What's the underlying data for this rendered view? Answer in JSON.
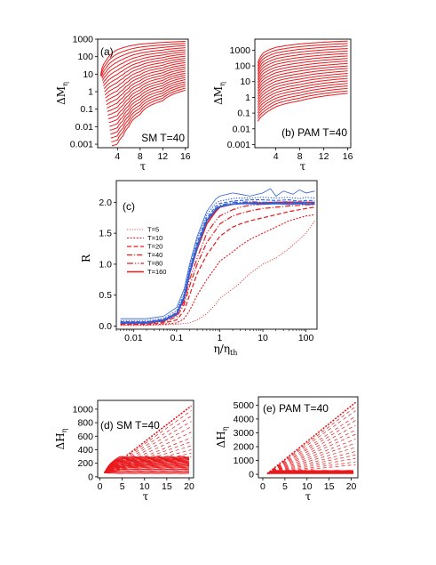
{
  "chart_data": [
    {
      "id": "a",
      "type": "line",
      "panel_label": "(a)",
      "annotation": "SM  T=40",
      "xlabel": "τ",
      "ylabel": "ΔM",
      "ylabel_sub": "η",
      "xlim": [
        0.5,
        16.5
      ],
      "ylim_log10": [
        -3.2,
        3.0
      ],
      "log_y": true,
      "x_ticks": [
        4,
        8,
        12,
        16
      ],
      "y_ticks": [
        0.001,
        0.01,
        0.1,
        1,
        10,
        100,
        1000
      ],
      "y_tick_labels": [
        "0.001",
        "0.01",
        "0.1",
        "1",
        "10",
        "100",
        "1000"
      ],
      "color": "#e8191c",
      "curve_count": 24,
      "curve_model": "saturating growth in log10(ΔM) versus τ",
      "curve_x_range": [
        1,
        16
      ],
      "top_curve": {
        "x": [
          1,
          2,
          3,
          4,
          6,
          8,
          12,
          16
        ],
        "y": [
          8,
          60,
          150,
          250,
          400,
          520,
          650,
          750
        ]
      },
      "bottom_curve": {
        "x": [
          3,
          4,
          5,
          6,
          8,
          12,
          16
        ],
        "y": [
          0.0008,
          0.001,
          0.003,
          0.01,
          0.05,
          0.3,
          1.2
        ]
      }
    },
    {
      "id": "b",
      "type": "line",
      "panel_label": "(b) PAM  T=40",
      "xlabel": "τ",
      "ylabel": "ΔM",
      "ylabel_sub": "η",
      "xlim": [
        0.5,
        16.5
      ],
      "ylim_log10": [
        -3.2,
        3.7
      ],
      "log_y": true,
      "x_ticks": [
        4,
        8,
        12,
        16
      ],
      "y_ticks": [
        0.001,
        0.01,
        0.1,
        1,
        10,
        100,
        1000
      ],
      "y_tick_labels": [
        "0.001",
        "0.01",
        "0.1",
        "1",
        "10",
        "100",
        "1000"
      ],
      "color": "#e8191c",
      "curve_count": 22,
      "curve_model": "saturating growth in log10(ΔM) versus τ",
      "curve_x_range": [
        1,
        16
      ],
      "top_curve": {
        "x": [
          1,
          2,
          4,
          8,
          12,
          16
        ],
        "y": [
          150,
          700,
          1500,
          2500,
          3200,
          3800
        ]
      },
      "bottom_curve": {
        "x": [
          1,
          2,
          3,
          4,
          8,
          12,
          16
        ],
        "y": [
          0.03,
          0.08,
          0.15,
          0.25,
          0.6,
          1.2,
          1.8
        ]
      }
    },
    {
      "id": "c",
      "type": "line",
      "panel_label": "(c)",
      "xlabel": "η/η",
      "xlabel_sub": "th",
      "ylabel": "R",
      "log_x": true,
      "xlim": [
        0.004,
        180
      ],
      "ylim": [
        -0.05,
        2.35
      ],
      "x_ticks": [
        0.01,
        0.1,
        1,
        10,
        100
      ],
      "x_tick_labels": [
        "0.01",
        "0.1",
        "1",
        "10",
        "100"
      ],
      "y_ticks": [
        0.0,
        0.5,
        1.0,
        1.5,
        2.0
      ],
      "y_tick_labels": [
        "0.0",
        "0.5",
        "1.0",
        "1.5",
        "2.0"
      ],
      "legend": {
        "position": "center-left",
        "entries": [
          "T=5",
          "T=10",
          "T=20",
          "T=40",
          "T=80",
          "T=160"
        ]
      },
      "series": [
        {
          "name": "T=5",
          "color": "#e8191c",
          "dash": "1.2,1.6",
          "width": 0.8,
          "x": [
            0.005,
            0.02,
            0.05,
            0.1,
            0.2,
            0.3,
            0.5,
            0.8,
            1,
            2,
            3,
            5,
            10,
            20,
            40,
            70,
            100,
            160
          ],
          "y": [
            0.01,
            0.01,
            0.02,
            0.03,
            0.05,
            0.1,
            0.2,
            0.35,
            0.45,
            0.6,
            0.7,
            0.85,
            1.0,
            1.1,
            1.25,
            1.4,
            1.5,
            1.7
          ]
        },
        {
          "name": "T=10",
          "color": "#e8191c",
          "dash": "2,1.6",
          "width": 1.1,
          "x": [
            0.005,
            0.02,
            0.05,
            0.1,
            0.15,
            0.2,
            0.3,
            0.5,
            0.8,
            1,
            2,
            3,
            5,
            10,
            20,
            40,
            70,
            100,
            160
          ],
          "y": [
            0.02,
            0.02,
            0.03,
            0.05,
            0.12,
            0.25,
            0.5,
            0.75,
            0.95,
            1.05,
            1.2,
            1.3,
            1.4,
            1.5,
            1.6,
            1.7,
            1.75,
            1.78,
            1.8
          ]
        },
        {
          "name": "T=20",
          "color": "#e8191c",
          "dash": "5,2.5",
          "width": 1.2,
          "x": [
            0.005,
            0.02,
            0.05,
            0.1,
            0.15,
            0.2,
            0.3,
            0.5,
            0.8,
            1,
            2,
            3,
            5,
            10,
            20,
            40,
            70,
            100,
            160
          ],
          "y": [
            0.03,
            0.03,
            0.05,
            0.1,
            0.25,
            0.5,
            0.85,
            1.15,
            1.35,
            1.45,
            1.6,
            1.65,
            1.7,
            1.75,
            1.8,
            1.85,
            1.88,
            1.9,
            1.92
          ]
        },
        {
          "name": "T=40",
          "color": "#e8191c",
          "dash": "6,2,1.2,2",
          "width": 1.2,
          "x": [
            0.005,
            0.02,
            0.05,
            0.1,
            0.15,
            0.2,
            0.3,
            0.5,
            0.8,
            1,
            2,
            3,
            5,
            10,
            20,
            40,
            70,
            100,
            160
          ],
          "y": [
            0.04,
            0.04,
            0.07,
            0.15,
            0.35,
            0.65,
            1.0,
            1.35,
            1.55,
            1.65,
            1.78,
            1.82,
            1.86,
            1.9,
            1.92,
            1.94,
            1.95,
            1.96,
            1.96
          ]
        },
        {
          "name": "T=80",
          "color": "#e8191c",
          "dash": "7,2,1.2,2,1.2,2",
          "width": 1.2,
          "x": [
            0.005,
            0.02,
            0.05,
            0.1,
            0.15,
            0.2,
            0.3,
            0.5,
            0.8,
            1,
            2,
            3,
            5,
            10,
            20,
            40,
            70,
            100,
            160
          ],
          "y": [
            0.05,
            0.05,
            0.08,
            0.18,
            0.4,
            0.75,
            1.1,
            1.5,
            1.7,
            1.78,
            1.88,
            1.92,
            1.95,
            1.97,
            1.98,
            1.98,
            1.99,
            1.99,
            1.99
          ]
        },
        {
          "name": "T=160",
          "color": "#e8191c",
          "dash": "",
          "width": 1.6,
          "x": [
            0.005,
            0.02,
            0.05,
            0.1,
            0.15,
            0.2,
            0.3,
            0.5,
            0.8,
            1,
            2,
            3,
            5,
            10,
            20,
            40,
            70,
            100,
            160
          ],
          "y": [
            0.06,
            0.06,
            0.1,
            0.2,
            0.45,
            0.85,
            1.25,
            1.65,
            1.85,
            1.92,
            1.97,
            1.98,
            1.99,
            1.99,
            2.0,
            2.0,
            2.0,
            2.0,
            2.0
          ]
        },
        {
          "color": "#2f5fd6",
          "dash": "",
          "width": 0.8,
          "x": [
            0.005,
            0.02,
            0.05,
            0.1,
            0.15,
            0.2,
            0.3,
            0.5,
            0.8,
            1,
            2,
            3,
            5,
            10,
            15,
            20,
            30,
            50,
            70,
            100,
            160
          ],
          "y": [
            0.12,
            0.12,
            0.16,
            0.3,
            0.6,
            1.0,
            1.45,
            1.85,
            2.05,
            2.1,
            2.15,
            2.13,
            2.1,
            2.15,
            2.22,
            2.1,
            2.18,
            2.13,
            2.2,
            2.15,
            2.18
          ]
        },
        {
          "color": "#2f5fd6",
          "dash": "1.5,1.5",
          "width": 1.0,
          "x": [
            0.005,
            0.02,
            0.05,
            0.1,
            0.15,
            0.2,
            0.3,
            0.5,
            0.8,
            1,
            2,
            3,
            5,
            10,
            20,
            40,
            70,
            100,
            160
          ],
          "y": [
            0.09,
            0.09,
            0.13,
            0.25,
            0.55,
            0.95,
            1.4,
            1.8,
            1.98,
            2.02,
            2.06,
            2.07,
            2.07,
            2.08,
            2.07,
            2.08,
            2.06,
            2.08,
            2.07
          ]
        },
        {
          "color": "#2f5fd6",
          "dash": "4,2",
          "width": 1.1,
          "x": [
            0.005,
            0.02,
            0.05,
            0.1,
            0.15,
            0.2,
            0.3,
            0.5,
            0.8,
            1,
            2,
            3,
            5,
            10,
            20,
            40,
            70,
            100,
            160
          ],
          "y": [
            0.07,
            0.07,
            0.11,
            0.22,
            0.5,
            0.9,
            1.35,
            1.75,
            1.93,
            1.98,
            2.02,
            2.03,
            2.04,
            2.04,
            2.03,
            2.04,
            2.02,
            2.03,
            2.03
          ]
        },
        {
          "color": "#2f5fd6",
          "dash": "6,2,1.2,2",
          "width": 1.2,
          "x": [
            0.005,
            0.02,
            0.05,
            0.1,
            0.15,
            0.2,
            0.3,
            0.5,
            0.8,
            1,
            2,
            3,
            5,
            10,
            20,
            40,
            70,
            100,
            160
          ],
          "y": [
            0.06,
            0.06,
            0.1,
            0.2,
            0.48,
            0.88,
            1.3,
            1.72,
            1.9,
            1.95,
            2.0,
            2.0,
            2.01,
            2.0,
            2.0,
            2.01,
            2.0,
            2.0,
            2.0
          ]
        },
        {
          "color": "#2f5fd6",
          "dash": "",
          "width": 1.8,
          "x": [
            0.005,
            0.02,
            0.05,
            0.1,
            0.15,
            0.2,
            0.3,
            0.5,
            0.8,
            1,
            2,
            3,
            5,
            10,
            20,
            40,
            70,
            100,
            160
          ],
          "y": [
            0.05,
            0.05,
            0.09,
            0.19,
            0.46,
            0.86,
            1.28,
            1.7,
            1.88,
            1.93,
            1.97,
            1.98,
            1.98,
            1.97,
            1.98,
            1.97,
            1.98,
            1.97,
            1.97
          ]
        }
      ]
    },
    {
      "id": "d",
      "type": "line",
      "panel_label": "(d) SM  T=40",
      "xlabel": "τ",
      "ylabel": "ΔH",
      "ylabel_sub": "η",
      "xlim": [
        -0.5,
        21
      ],
      "ylim": [
        -15,
        1130
      ],
      "x_ticks": [
        0,
        5,
        10,
        15,
        20
      ],
      "y_ticks": [
        0,
        200,
        400,
        600,
        800,
        1000
      ],
      "y_tick_labels": [
        "0",
        "200",
        "400",
        "600",
        "800",
        "1000"
      ],
      "color": "#e8191c",
      "dashed_fan": {
        "from": [
          1,
          60
        ],
        "to_x": 20.5,
        "end_values": [
          1050,
          980,
          900,
          820,
          740,
          660,
          580,
          520,
          460,
          400,
          350,
          300
        ]
      },
      "saturated_curves": {
        "rise_end_x": 5,
        "plateaus": [
          50,
          70,
          90,
          110,
          130,
          145,
          160,
          175,
          190,
          205,
          220,
          232,
          245,
          258,
          270,
          282,
          295
        ]
      }
    },
    {
      "id": "e",
      "type": "line",
      "panel_label": "(e) PAM  T=40",
      "xlabel": "τ",
      "ylabel": "ΔH",
      "ylabel_sub": "η",
      "xlim": [
        -1,
        21.5
      ],
      "ylim": [
        -250,
        5600
      ],
      "x_ticks": [
        0,
        5,
        10,
        15,
        20
      ],
      "y_ticks": [
        0,
        1000,
        2000,
        3000,
        4000,
        5000
      ],
      "y_tick_labels": [
        "0",
        "1000",
        "2000",
        "3000",
        "4000",
        "5000"
      ],
      "color": "#e8191c",
      "dashed_fan": {
        "from": [
          1,
          50
        ],
        "to_x": 21,
        "end_values": [
          5200,
          4900,
          4600,
          4200,
          3900,
          3550,
          3200,
          2900,
          2550,
          2250,
          1950,
          1650,
          1400,
          1150,
          900,
          700
        ]
      },
      "saturated_curves": {
        "rise_end_x": 2.5,
        "plateaus": [
          60,
          90,
          120,
          150,
          180,
          210,
          240,
          270
        ]
      }
    }
  ]
}
